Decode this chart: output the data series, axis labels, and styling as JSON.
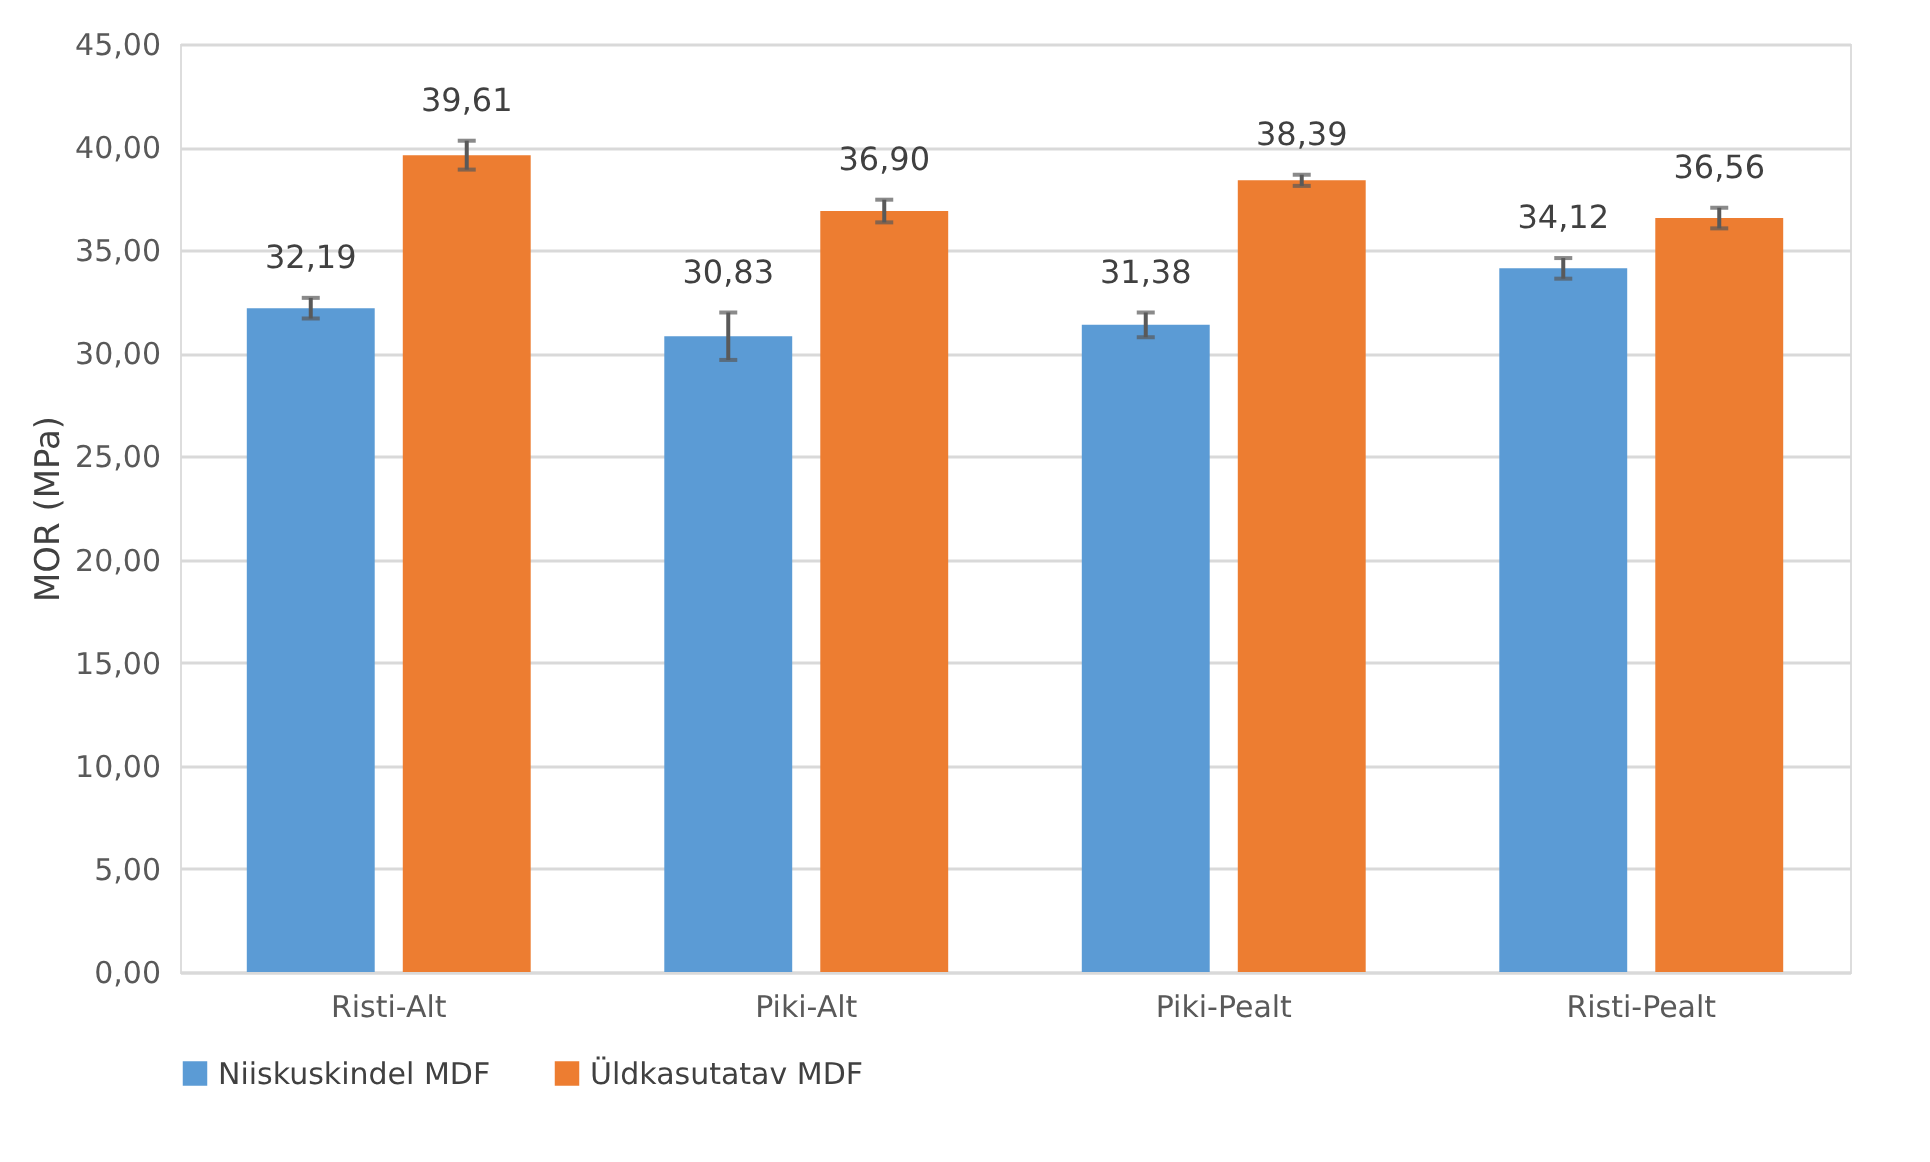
{
  "chart_data": {
    "type": "bar",
    "ylabel": "MOR (MPa)",
    "categories": [
      "Risti-Alt",
      "Piki-Alt",
      "Piki-Pealt",
      "Risti-Pealt"
    ],
    "series": [
      {
        "name": "Niiskuskindel MDF",
        "color": "#5b9bd5",
        "values": [
          32.19,
          30.83,
          31.38,
          34.12
        ],
        "errors": [
          0.5,
          1.15,
          0.6,
          0.5
        ],
        "value_labels": [
          "32,19",
          "30,83",
          "31,38",
          "34,12"
        ]
      },
      {
        "name": "Üldkasutatav MDF",
        "color": "#ed7d31",
        "values": [
          39.61,
          36.9,
          38.39,
          36.56
        ],
        "errors": [
          0.7,
          0.55,
          0.27,
          0.5
        ],
        "value_labels": [
          "39,61",
          "36,90",
          "38,39",
          "36,56"
        ]
      }
    ],
    "ylim": [
      0,
      45
    ],
    "yticks": [
      {
        "value": 0,
        "label": "0,00"
      },
      {
        "value": 5,
        "label": "5,00"
      },
      {
        "value": 10,
        "label": "10,00"
      },
      {
        "value": 15,
        "label": "15,00"
      },
      {
        "value": 20,
        "label": "20,00"
      },
      {
        "value": 25,
        "label": "25,00"
      },
      {
        "value": 30,
        "label": "30,00"
      },
      {
        "value": 35,
        "label": "35,00"
      },
      {
        "value": 40,
        "label": "40,00"
      },
      {
        "value": 45,
        "label": "45,00"
      }
    ],
    "grid": "y",
    "legend": "bottom"
  }
}
